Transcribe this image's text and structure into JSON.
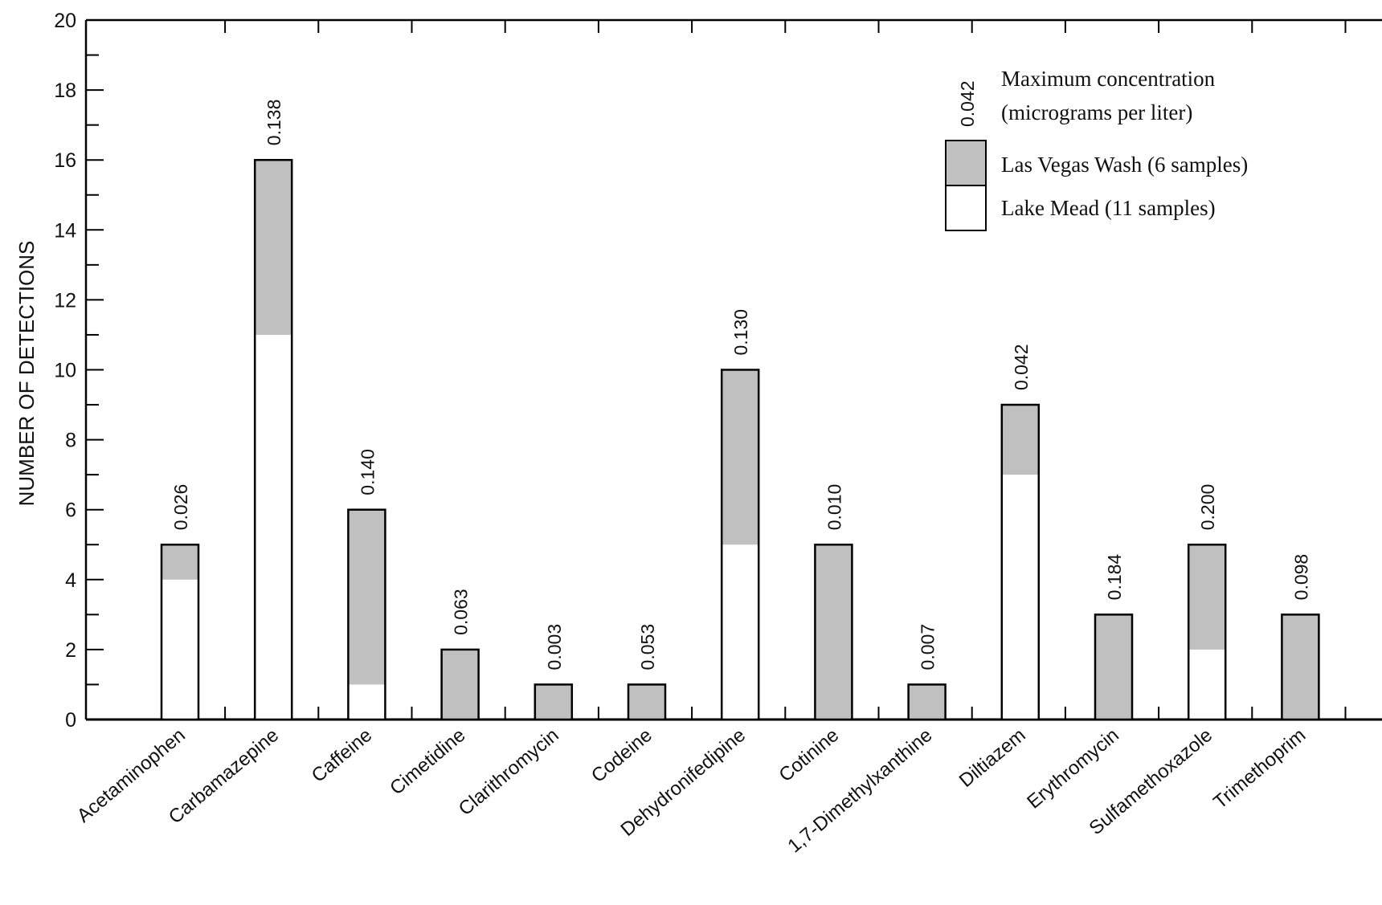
{
  "chart_data": {
    "type": "bar",
    "stacked": true,
    "xlabel": "",
    "ylabel": "NUMBER OF DETECTIONS",
    "ylim": [
      0,
      20
    ],
    "yticks": [
      0,
      2,
      4,
      6,
      8,
      10,
      12,
      14,
      16,
      18,
      20
    ],
    "grid": false,
    "legend_position": "top-right",
    "categories": [
      "Acetaminophen",
      "Carbamazepine",
      "Caffeine",
      "Cimetidine",
      "Clarithromycin",
      "Codeine",
      "Dehydronifedipine",
      "Cotinine",
      "1,7-Dimethylxanthine",
      "Diltiazem",
      "Erythromycin",
      "Sulfamethoxazole",
      "Trimethoprim"
    ],
    "series": [
      {
        "name": "Lake Mead (11 samples)",
        "color": "#ffffff",
        "values": [
          4,
          11,
          1,
          0,
          0,
          0,
          5,
          0,
          0,
          7,
          0,
          2,
          0
        ]
      },
      {
        "name": "Las Vegas Wash (6 samples)",
        "color": "#c0c0c0",
        "values": [
          1,
          5,
          5,
          2,
          1,
          1,
          5,
          5,
          1,
          2,
          3,
          3,
          3
        ]
      }
    ],
    "bar_labels": [
      "0.026",
      "0.138",
      "0.140",
      "0.063",
      "0.003",
      "0.053",
      "0.130",
      "0.010",
      "0.007",
      "0.042",
      "0.184",
      "0.200",
      "0.098"
    ],
    "legend": {
      "example_value": "0.042",
      "value_title_line1": "Maximum concentration",
      "value_title_line2": "(micrograms per liter)"
    }
  }
}
